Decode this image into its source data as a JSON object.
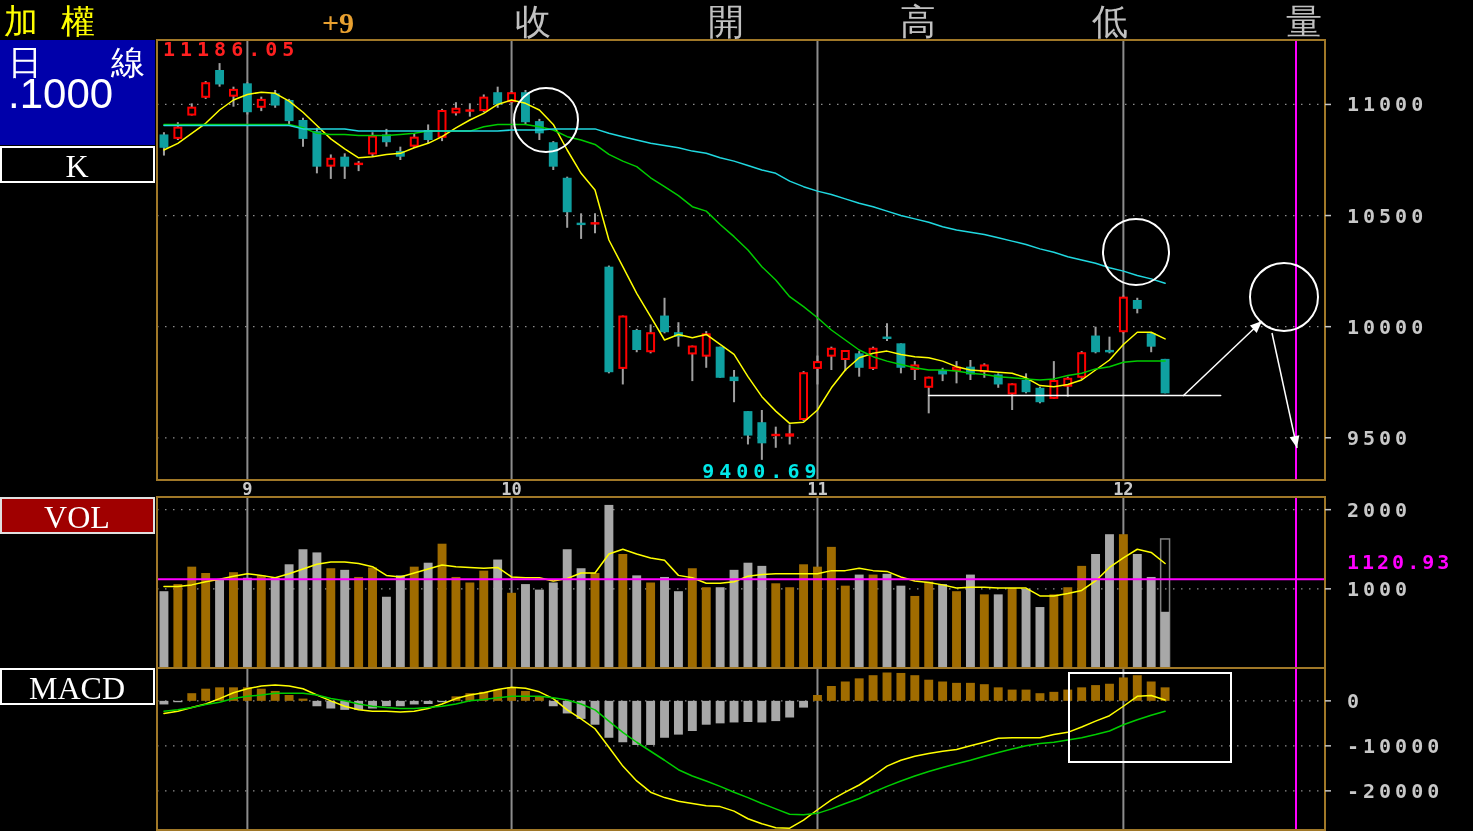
{
  "chart_data": [
    {
      "type": "candlestick",
      "title": "加 權",
      "ylabel": "K",
      "annotations": [
        "+9",
        "收",
        "開",
        "高",
        "低",
        "量",
        "日 線",
        ".1000",
        "11186.05",
        {
          "text": "9400.69",
          "y": 9400.69
        }
      ],
      "categories": [
        null,
        null,
        null,
        null,
        null,
        null,
        "9",
        null,
        null,
        null,
        null,
        null,
        null,
        null,
        null,
        null,
        null,
        null,
        null,
        null,
        null,
        null,
        null,
        null,
        null,
        "10",
        null,
        null,
        null,
        null,
        null,
        null,
        null,
        null,
        null,
        null,
        null,
        null,
        null,
        null,
        null,
        null,
        null,
        null,
        null,
        null,
        null,
        "11",
        null,
        null,
        null,
        null,
        null,
        null,
        null,
        null,
        null,
        null,
        null,
        null,
        null,
        null,
        null,
        null,
        null,
        null,
        null,
        null,
        null,
        "12",
        null,
        null,
        null,
        null,
        null,
        null,
        null,
        null,
        null,
        null,
        null,
        null,
        null,
        null
      ],
      "ohlc": [
        [
          10865,
          10875,
          10770,
          10805
        ],
        [
          10845,
          10920,
          10840,
          10900
        ],
        [
          10950,
          11005,
          10950,
          10990
        ],
        [
          11030,
          11105,
          11025,
          11100
        ],
        [
          11155,
          11186.05,
          11080,
          11090
        ],
        [
          11035,
          11080,
          10990,
          11070
        ],
        [
          11095,
          11100,
          10955,
          10965
        ],
        [
          10985,
          11035,
          10970,
          11025
        ],
        [
          11050,
          11065,
          10985,
          10995
        ],
        [
          11020,
          11025,
          10905,
          10925
        ],
        [
          10930,
          10940,
          10810,
          10845
        ],
        [
          10880,
          10895,
          10690,
          10720
        ],
        [
          10720,
          10775,
          10665,
          10760
        ],
        [
          10765,
          10780,
          10665,
          10720
        ],
        [
          10730,
          10745,
          10700,
          10735
        ],
        [
          10775,
          10875,
          10765,
          10860
        ],
        [
          10865,
          10890,
          10810,
          10830
        ],
        [
          10790,
          10810,
          10750,
          10765
        ],
        [
          10810,
          10870,
          10805,
          10855
        ],
        [
          10885,
          10910,
          10825,
          10840
        ],
        [
          10850,
          10980,
          10835,
          10975
        ],
        [
          10960,
          11010,
          10950,
          10985
        ],
        [
          10970,
          11005,
          10945,
          10975
        ],
        [
          10970,
          11045,
          10965,
          11035
        ],
        [
          11055,
          11080,
          10985,
          11000
        ],
        [
          11010,
          11060,
          11005,
          11055
        ],
        [
          11055,
          11065,
          10910,
          10920
        ],
        [
          10925,
          10935,
          10840,
          10870
        ],
        [
          10830,
          10835,
          10705,
          10720
        ],
        [
          10670,
          10675,
          10445,
          10515
        ],
        [
          10465,
          10510,
          10395,
          10460
        ],
        [
          10460,
          10510,
          10420,
          10470
        ],
        [
          10270,
          10275,
          9790,
          9795
        ],
        [
          9810,
          10050,
          9740,
          10050
        ],
        [
          9985,
          9990,
          9885,
          9895
        ],
        [
          9885,
          10010,
          9880,
          9975
        ],
        [
          10050,
          10130,
          9970,
          9975
        ],
        [
          9975,
          10020,
          9910,
          9955
        ],
        [
          9875,
          9915,
          9755,
          9915
        ],
        [
          9865,
          9980,
          9815,
          9970
        ],
        [
          9910,
          9910,
          9770,
          9770
        ],
        [
          9775,
          9805,
          9660,
          9755
        ],
        [
          9620,
          9620,
          9470,
          9510
        ],
        [
          9570,
          9625,
          9400.69,
          9475
        ],
        [
          9510,
          9550,
          9455,
          9515
        ],
        [
          9505,
          9560,
          9470,
          9520
        ],
        [
          9580,
          9800,
          9575,
          9795
        ],
        [
          9810,
          9870,
          9740,
          9845
        ],
        [
          9865,
          9910,
          9805,
          9905
        ],
        [
          9850,
          9895,
          9800,
          9895
        ],
        [
          9880,
          9890,
          9775,
          9815
        ],
        [
          9810,
          9910,
          9805,
          9905
        ],
        [
          9955,
          10015,
          9935,
          9945
        ],
        [
          9925,
          9925,
          9790,
          9815
        ],
        [
          9805,
          9845,
          9760,
          9830
        ],
        [
          9725,
          9775,
          9610,
          9775
        ],
        [
          9805,
          9815,
          9755,
          9785
        ],
        [
          9800,
          9845,
          9745,
          9820
        ],
        [
          9820,
          9850,
          9760,
          9785
        ],
        [
          9795,
          9835,
          9770,
          9830
        ],
        [
          9785,
          9790,
          9725,
          9740
        ],
        [
          9695,
          9745,
          9625,
          9745
        ],
        [
          9760,
          9790,
          9700,
          9705
        ],
        [
          9725,
          9730,
          9655,
          9660
        ],
        [
          9675,
          9845,
          9675,
          9760
        ],
        [
          9730,
          9775,
          9685,
          9770
        ],
        [
          9770,
          9890,
          9765,
          9885
        ],
        [
          9960,
          10000,
          9880,
          9885
        ],
        [
          9895,
          9955,
          9880,
          9885
        ],
        [
          9975,
          10140,
          9970,
          10135
        ],
        [
          10120,
          10130,
          10060,
          10080
        ],
        [
          9970,
          9975,
          9885,
          9910
        ],
        [
          9855,
          9855,
          9700,
          9700
        ],
        null,
        null,
        null,
        null,
        null,
        null,
        null,
        null,
        null,
        null,
        null
      ],
      "colors": [
        "#0fa0a0",
        "#ff0000",
        "#ff0000",
        "#ff0000",
        "#0fa0a0",
        "#ff0000",
        "#0fa0a0",
        "#ff0000",
        "#0fa0a0",
        "#0fa0a0",
        "#0fa0a0",
        "#0fa0a0",
        "#ff0000",
        "#0fa0a0",
        "#ff0000",
        "#ff0000",
        "#0fa0a0",
        "#0fa0a0",
        "#ff0000",
        "#0fa0a0",
        "#ff0000",
        "#ff0000",
        "#ff0000",
        "#ff0000",
        "#0fa0a0",
        "#ff0000",
        "#0fa0a0",
        "#0fa0a0",
        "#0fa0a0",
        "#0fa0a0",
        "#0fa0a0",
        "#ff0000",
        "#0fa0a0",
        "#ff0000",
        "#0fa0a0",
        "#ff0000",
        "#0fa0a0",
        "#0fa0a0",
        "#ff0000",
        "#ff0000",
        "#0fa0a0",
        "#0fa0a0",
        "#0fa0a0",
        "#0fa0a0",
        "#ff0000",
        "#ff0000",
        "#ff0000",
        "#ff0000",
        "#ff0000",
        "#ff0000",
        "#0fa0a0",
        "#ff0000",
        "#0fa0a0",
        "#0fa0a0",
        "#ff0000",
        "#ff0000",
        "#0fa0a0",
        "#ff0000",
        "#0fa0a0",
        "#ff0000",
        "#0fa0a0",
        "#ff0000",
        "#0fa0a0",
        "#0fa0a0",
        "#ff0000",
        "#ff0000",
        "#ff0000",
        "#0fa0a0",
        "#0fa0a0",
        "#ff0000",
        "#0fa0a0",
        "#0fa0a0",
        "#0fa0a0",
        null,
        null,
        null,
        null,
        null,
        null,
        null,
        null,
        null,
        null,
        null
      ],
      "series": [
        {
          "type": "line",
          "color": "#ffff00",
          "values": [
            10795,
            10825,
            10870,
            10915,
            10975,
            11020,
            11045,
            11055,
            11050,
            11015,
            10965,
            10905,
            10845,
            10800,
            10760,
            10765,
            10775,
            10780,
            10805,
            10825,
            10855,
            10895,
            10930,
            10960,
            11000,
            11020,
            11005,
            10975,
            10910,
            10795,
            10690,
            10615,
            10390,
            10270,
            10150,
            10045,
            9940,
            9965,
            9950,
            9965,
            9920,
            9875,
            9775,
            9685,
            9620,
            9565,
            9570,
            9625,
            9725,
            9805,
            9860,
            9880,
            9890,
            9875,
            9865,
            9860,
            9845,
            9820,
            9805,
            9800,
            9795,
            9790,
            9770,
            9735,
            9730,
            9740,
            9760,
            9805,
            9850,
            9920,
            9975,
            9975,
            9945,
            null,
            null,
            null,
            null,
            null,
            null,
            null,
            null,
            null,
            null,
            null
          ]
        },
        {
          "type": "line",
          "color": "#00cc00",
          "values": [
            10910,
            10910,
            10910,
            10910,
            10910,
            10910,
            10910,
            10910,
            10910,
            10910,
            10895,
            10870,
            10865,
            10865,
            10860,
            10860,
            10860,
            10865,
            10870,
            10880,
            10880,
            10880,
            10880,
            10900,
            10910,
            10910,
            10910,
            10900,
            10885,
            10855,
            10840,
            10820,
            10775,
            10745,
            10720,
            10670,
            10630,
            10590,
            10540,
            10520,
            10460,
            10405,
            10345,
            10270,
            10210,
            10135,
            10090,
            10040,
            9985,
            9940,
            9895,
            9865,
            9845,
            9830,
            9815,
            9805,
            9805,
            9800,
            9790,
            9785,
            9775,
            9770,
            9765,
            9760,
            9765,
            9780,
            9790,
            9810,
            9820,
            9840,
            9845,
            9845,
            9845,
            null,
            null,
            null,
            null,
            null,
            null,
            null,
            null,
            null,
            null,
            null
          ]
        },
        {
          "type": "line",
          "color": "#20d8e0",
          "values": [
            10905,
            10905,
            10905,
            10905,
            10905,
            10905,
            10905,
            10905,
            10905,
            10905,
            10890,
            10890,
            10890,
            10890,
            10880,
            10880,
            10880,
            10880,
            10880,
            10880,
            10880,
            10880,
            10880,
            10880,
            10880,
            10885,
            10885,
            10885,
            10890,
            10890,
            10890,
            10890,
            10870,
            10855,
            10840,
            10825,
            10815,
            10805,
            10790,
            10780,
            10760,
            10745,
            10725,
            10705,
            10690,
            10655,
            10630,
            10610,
            10595,
            10575,
            10555,
            10540,
            10520,
            10500,
            10485,
            10470,
            10450,
            10435,
            10425,
            10415,
            10400,
            10385,
            10370,
            10350,
            10335,
            10315,
            10300,
            10285,
            10265,
            10250,
            10230,
            10215,
            10195,
            null,
            null,
            null,
            null,
            null,
            null,
            null,
            null,
            null,
            null,
            null
          ]
        },
        {
          "type": "line",
          "color": "#ffffff",
          "values": [
            null,
            null,
            null,
            null,
            null,
            null,
            null,
            null,
            null,
            null,
            null,
            null,
            null,
            null,
            null,
            null,
            null,
            null,
            null,
            null,
            null,
            null,
            null,
            null,
            null,
            null,
            null,
            null,
            null,
            null,
            null,
            null,
            null,
            null,
            null,
            null,
            null,
            null,
            null,
            null,
            null,
            null,
            null,
            null,
            null,
            null,
            null,
            null,
            null,
            null,
            null,
            null,
            null,
            null,
            null,
            9690,
            9690,
            9690,
            9690,
            9690,
            9690,
            9690,
            9690,
            9690,
            9690,
            9690,
            9690,
            9690,
            9690,
            9690,
            9690,
            9690,
            9690,
            9690,
            9690,
            9690,
            9690,
            null,
            null,
            null,
            null,
            null,
            null,
            null
          ]
        }
      ],
      "ylim": [
        9310,
        11290
      ],
      "yticks": [
        11000,
        10500,
        10000,
        9500
      ],
      "grid": true
    },
    {
      "type": "bar",
      "ylabel": "VOL",
      "categories": [
        null,
        null,
        null,
        null,
        null,
        null,
        "9",
        null,
        null,
        null,
        null,
        null,
        null,
        null,
        null,
        null,
        null,
        null,
        null,
        null,
        null,
        null,
        null,
        null,
        null,
        "10",
        null,
        null,
        null,
        null,
        null,
        null,
        null,
        null,
        null,
        null,
        null,
        null,
        null,
        null,
        null,
        null,
        null,
        null,
        null,
        null,
        null,
        "11",
        null,
        null,
        null,
        null,
        null,
        null,
        null,
        null,
        null,
        null,
        null,
        null,
        null,
        null,
        null,
        null,
        null,
        null,
        null,
        null,
        null,
        "12",
        null,
        null,
        null,
        null,
        null,
        null,
        null,
        null,
        null,
        null,
        null,
        null,
        null,
        null
      ],
      "series": [
        {
          "color": "#808080",
          "line_style": "solid",
          "values": [
            null,
            null,
            null,
            null,
            null,
            null,
            null,
            null,
            null,
            null,
            null,
            null,
            null,
            null,
            null,
            null,
            null,
            null,
            null,
            null,
            null,
            null,
            null,
            null,
            null,
            null,
            null,
            null,
            null,
            null,
            null,
            null,
            null,
            null,
            null,
            null,
            null,
            null,
            null,
            null,
            null,
            null,
            null,
            null,
            null,
            null,
            null,
            null,
            null,
            null,
            null,
            null,
            null,
            null,
            null,
            null,
            null,
            null,
            null,
            null,
            null,
            null,
            null,
            null,
            null,
            null,
            null,
            null,
            null,
            null,
            null,
            null,
            1630,
            null,
            null,
            null,
            null,
            null,
            null,
            null,
            null,
            null,
            null,
            null
          ]
        },
        {
          "values": [
            970,
            1060,
            1280,
            1200,
            1120,
            1210,
            1140,
            1170,
            1140,
            1310,
            1500,
            1460,
            1260,
            1240,
            1150,
            1270,
            900,
            1170,
            1280,
            1330,
            1570,
            1150,
            1080,
            1230,
            1370,
            950,
            1060,
            990,
            1080,
            1500,
            1260,
            1200,
            2060,
            1440,
            1170,
            1080,
            1150,
            970,
            1260,
            1020,
            1020,
            1240,
            1330,
            1290,
            1070,
            1020,
            1310,
            1280,
            1530,
            1040,
            1180,
            1180,
            1190,
            1040,
            910,
            1090,
            1060,
            970,
            1180,
            930,
            930,
            1010,
            1000,
            770,
            930,
            1020,
            1290,
            1440,
            1690,
            1690,
            1440,
            1150,
            710,
            null,
            null,
            null,
            null,
            null,
            null,
            null,
            null,
            null,
            null,
            null
          ],
          "colors": [
            "#a8a8a8",
            "#a06c00",
            "#a06c00",
            "#a06c00",
            "#a8a8a8",
            "#a06c00",
            "#a8a8a8",
            "#a06c00",
            "#a8a8a8",
            "#a8a8a8",
            "#a8a8a8",
            "#a8a8a8",
            "#a06c00",
            "#a8a8a8",
            "#a06c00",
            "#a06c00",
            "#a8a8a8",
            "#a8a8a8",
            "#a06c00",
            "#a8a8a8",
            "#a06c00",
            "#a06c00",
            "#a06c00",
            "#a06c00",
            "#a8a8a8",
            "#a06c00",
            "#a8a8a8",
            "#a8a8a8",
            "#a8a8a8",
            "#a8a8a8",
            "#a8a8a8",
            "#a06c00",
            "#a8a8a8",
            "#a06c00",
            "#a8a8a8",
            "#a06c00",
            "#a8a8a8",
            "#a8a8a8",
            "#a06c00",
            "#a06c00",
            "#a8a8a8",
            "#a8a8a8",
            "#a8a8a8",
            "#a8a8a8",
            "#a06c00",
            "#a06c00",
            "#a06c00",
            "#a06c00",
            "#a06c00",
            "#a06c00",
            "#a8a8a8",
            "#a06c00",
            "#a8a8a8",
            "#a8a8a8",
            "#a06c00",
            "#a06c00",
            "#a8a8a8",
            "#a06c00",
            "#a8a8a8",
            "#a06c00",
            "#a8a8a8",
            "#a06c00",
            "#a8a8a8",
            "#a8a8a8",
            "#a06c00",
            "#a06c00",
            "#a06c00",
            "#a8a8a8",
            "#a8a8a8",
            "#a06c00",
            "#a8a8a8",
            "#a8a8a8",
            "#a8a8a8",
            null,
            null,
            null,
            null,
            null,
            null,
            null,
            null,
            null,
            null,
            null
          ]
        },
        {
          "type": "line",
          "color": "#ffff00",
          "values": [
            1030,
            1030,
            1050,
            1090,
            1120,
            1160,
            1190,
            1170,
            1140,
            1190,
            1250,
            1310,
            1340,
            1340,
            1320,
            1280,
            1170,
            1150,
            1200,
            1250,
            1300,
            1280,
            1270,
            1260,
            1270,
            1150,
            1140,
            1140,
            1100,
            1130,
            1200,
            1200,
            1440,
            1500,
            1440,
            1390,
            1360,
            1170,
            1140,
            1070,
            1070,
            1090,
            1160,
            1180,
            1190,
            1190,
            1190,
            1190,
            1230,
            1230,
            1260,
            1230,
            1220,
            1150,
            1100,
            1080,
            1050,
            1010,
            1020,
            1020,
            1010,
            1010,
            1010,
            910,
            910,
            940,
            980,
            1100,
            1270,
            1390,
            1500,
            1460,
            1320,
            null,
            null,
            null,
            null,
            null,
            null,
            null,
            null,
            null,
            null,
            null
          ]
        }
      ],
      "ylim": [
        0,
        2160
      ],
      "yticks": [
        2000,
        1000
      ],
      "grid": true,
      "tick_labels": "y",
      "ref_lines": [
        {
          "axis": "y",
          "value": 1120.93,
          "label": "1120.93",
          "color": "#ff00ff"
        }
      ]
    },
    {
      "type": "bar",
      "ylabel": "MACD",
      "categories": [
        null,
        null,
        null,
        null,
        null,
        null,
        "9",
        null,
        null,
        null,
        null,
        null,
        null,
        null,
        null,
        null,
        null,
        null,
        null,
        null,
        null,
        null,
        null,
        null,
        null,
        "10",
        null,
        null,
        null,
        null,
        null,
        null,
        null,
        null,
        null,
        null,
        null,
        null,
        null,
        null,
        null,
        null,
        null,
        null,
        null,
        null,
        null,
        "11",
        null,
        null,
        null,
        null,
        null,
        null,
        null,
        null,
        null,
        null,
        null,
        null,
        null,
        null,
        null,
        null,
        null,
        null,
        null,
        null,
        null,
        "12",
        null,
        null,
        null,
        null,
        null,
        null,
        null,
        null,
        null,
        null,
        null,
        null,
        null,
        null
      ],
      "series": [
        {
          "values": [
            -800,
            -300,
            1700,
            2700,
            3000,
            3000,
            3000,
            2700,
            2200,
            1300,
            500,
            -1200,
            -1700,
            -2000,
            -2000,
            -1700,
            -1200,
            -1200,
            -800,
            -700,
            -300,
            1000,
            1700,
            2000,
            2500,
            3000,
            2200,
            1000,
            -1200,
            -2800,
            -4000,
            -5300,
            -8200,
            -9200,
            -9800,
            -9800,
            -8200,
            -7500,
            -6700,
            -5300,
            -5000,
            -4800,
            -4700,
            -4800,
            -4500,
            -3700,
            -1500,
            1300,
            3300,
            4300,
            5000,
            5700,
            6300,
            6200,
            5700,
            4700,
            4300,
            4000,
            4000,
            3700,
            3000,
            2500,
            2500,
            1700,
            2000,
            2500,
            3000,
            3500,
            3800,
            5200,
            5700,
            4300,
            3000,
            null,
            null,
            null,
            null,
            null,
            null,
            null,
            null,
            null,
            null,
            null
          ],
          "colors": [
            "#a8a8a8",
            "#a8a8a8",
            "#a06c00",
            "#a06c00",
            "#a06c00",
            "#a06c00",
            "#a06c00",
            "#a06c00",
            "#a06c00",
            "#a06c00",
            "#a06c00",
            "#a8a8a8",
            "#a8a8a8",
            "#a8a8a8",
            "#a8a8a8",
            "#a8a8a8",
            "#a8a8a8",
            "#a8a8a8",
            "#a8a8a8",
            "#a8a8a8",
            "#a8a8a8",
            "#a06c00",
            "#a06c00",
            "#a06c00",
            "#a06c00",
            "#a06c00",
            "#a06c00",
            "#a06c00",
            "#a8a8a8",
            "#a8a8a8",
            "#a8a8a8",
            "#a8a8a8",
            "#a8a8a8",
            "#a8a8a8",
            "#a8a8a8",
            "#a8a8a8",
            "#a8a8a8",
            "#a8a8a8",
            "#a8a8a8",
            "#a8a8a8",
            "#a8a8a8",
            "#a8a8a8",
            "#a8a8a8",
            "#a8a8a8",
            "#a8a8a8",
            "#a8a8a8",
            "#a8a8a8",
            "#a06c00",
            "#a06c00",
            "#a06c00",
            "#a06c00",
            "#a06c00",
            "#a06c00",
            "#a06c00",
            "#a06c00",
            "#a06c00",
            "#a06c00",
            "#a06c00",
            "#a06c00",
            "#a06c00",
            "#a06c00",
            "#a06c00",
            "#a06c00",
            "#a06c00",
            "#a06c00",
            "#a06c00",
            "#a06c00",
            "#a06c00",
            "#a06c00",
            "#a06c00",
            "#a06c00",
            "#a06c00",
            "#a06c00",
            null,
            null,
            null,
            null,
            null,
            null,
            null,
            null,
            null,
            null,
            null
          ]
        },
        {
          "type": "line",
          "color": "#ffff00",
          "values": [
            -2800,
            -2300,
            -1500,
            -700,
            500,
            1800,
            2700,
            3300,
            3500,
            3300,
            2700,
            1300,
            0,
            -1200,
            -2000,
            -2300,
            -2300,
            -2500,
            -2300,
            -1700,
            -700,
            500,
            1300,
            1800,
            2500,
            3000,
            2800,
            2000,
            500,
            -2000,
            -4000,
            -6200,
            -10300,
            -14500,
            -17800,
            -20300,
            -21500,
            -22300,
            -22800,
            -23300,
            -23500,
            -24500,
            -26200,
            -27300,
            -28200,
            -28300,
            -26500,
            -24200,
            -22000,
            -20300,
            -18700,
            -16700,
            -14500,
            -13200,
            -12300,
            -11700,
            -11200,
            -10800,
            -10000,
            -9200,
            -8300,
            -8200,
            -8200,
            -8200,
            -7500,
            -7000,
            -5800,
            -4500,
            -3300,
            -1200,
            1000,
            1200,
            200,
            null,
            null,
            null,
            null,
            null,
            null,
            null,
            null,
            null,
            null,
            null
          ]
        },
        {
          "type": "line",
          "color": "#00cc00",
          "values": [
            -2300,
            -2000,
            -1500,
            -800,
            -300,
            500,
            1000,
            1300,
            1700,
            1700,
            1700,
            1300,
            500,
            0,
            -700,
            -1200,
            -1500,
            -1700,
            -1700,
            -1500,
            -1200,
            -700,
            0,
            300,
            700,
            1000,
            1000,
            1000,
            700,
            200,
            -700,
            -2000,
            -4500,
            -7000,
            -9200,
            -11200,
            -13200,
            -15300,
            -16700,
            -17800,
            -19000,
            -20300,
            -21500,
            -22800,
            -24000,
            -25200,
            -25300,
            -25000,
            -24000,
            -22800,
            -21700,
            -20300,
            -19000,
            -17800,
            -16700,
            -15700,
            -14800,
            -14000,
            -13200,
            -12300,
            -11500,
            -10700,
            -10000,
            -9500,
            -9200,
            -8700,
            -8200,
            -7500,
            -6700,
            -5300,
            -4200,
            -3200,
            -2300,
            null,
            null,
            null,
            null,
            null,
            null,
            null,
            null,
            null,
            null,
            null
          ]
        }
      ],
      "ylim": [
        -28700,
        7300
      ],
      "yticks": [
        0,
        -10000,
        -20000
      ],
      "grid": true,
      "tick_labels": "y"
    }
  ]
}
